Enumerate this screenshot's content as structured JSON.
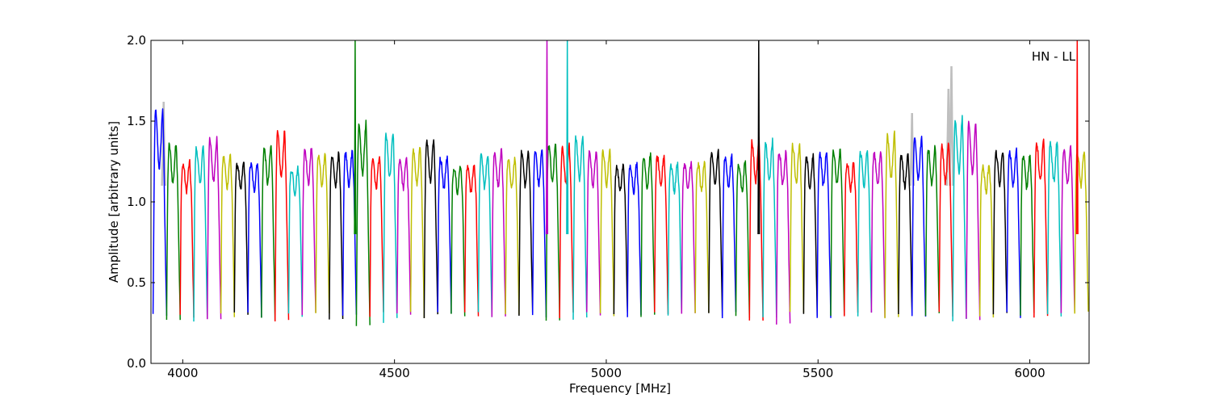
{
  "chart_data": {
    "type": "line",
    "title": "",
    "annotation": "HN - LL",
    "xlabel": "Frequency [MHz]",
    "ylabel": "Amplitude [arbitrary units]",
    "xlim": [
      3925,
      6140
    ],
    "ylim": [
      0.0,
      2.0
    ],
    "xticks": [
      4000,
      4500,
      5000,
      5500,
      6000
    ],
    "yticks": [
      0.0,
      0.5,
      1.0,
      1.5,
      2.0
    ],
    "xtick_labels": [
      "4000",
      "4500",
      "5000",
      "5500",
      "6000"
    ],
    "ytick_labels": [
      "0.0",
      "0.5",
      "1.0",
      "1.5",
      "2.0"
    ],
    "grid": false,
    "legend": "none",
    "band": {
      "start_mhz": 3930,
      "spacing_mhz": 32,
      "count": 69,
      "edge_level": 0.3,
      "color_cycle": [
        "#0000ff",
        "#008000",
        "#ff0000",
        "#00bfbf",
        "#bf00bf",
        "#bfbf00",
        "#000000"
      ],
      "background_color": "#bfbfbf"
    },
    "series": [
      {
        "values": [
          [
            3930,
            0.3,
            1.58
          ],
          [
            3962,
            0.27,
            1.35
          ],
          [
            3994,
            0.3,
            1.22
          ],
          [
            4026,
            0.27,
            1.33
          ],
          [
            4058,
            0.28,
            1.38
          ],
          [
            4090,
            0.29,
            1.27
          ],
          [
            4122,
            0.3,
            1.22
          ],
          [
            4154,
            0.3,
            1.22
          ],
          [
            4186,
            0.27,
            1.33
          ],
          [
            4218,
            0.28,
            1.43
          ],
          [
            4250,
            0.3,
            1.18
          ],
          [
            4282,
            0.3,
            1.33
          ],
          [
            4314,
            0.3,
            1.28
          ],
          [
            4346,
            0.28,
            1.28
          ],
          [
            4378,
            0.3,
            1.3
          ],
          [
            4410,
            0.25,
            1.48
          ],
          [
            4442,
            0.3,
            1.26
          ],
          [
            4474,
            0.27,
            1.42
          ],
          [
            4506,
            0.3,
            1.26
          ],
          [
            4538,
            0.3,
            1.32
          ],
          [
            4570,
            0.3,
            1.38
          ],
          [
            4602,
            0.3,
            1.26
          ],
          [
            4634,
            0.3,
            1.2
          ],
          [
            4666,
            0.3,
            1.2
          ],
          [
            4698,
            0.3,
            1.28
          ],
          [
            4730,
            0.3,
            1.3
          ],
          [
            4762,
            0.3,
            1.25
          ],
          [
            4794,
            0.3,
            1.3
          ],
          [
            4826,
            0.3,
            1.31
          ],
          [
            4858,
            0.27,
            1.35
          ],
          [
            4890,
            0.3,
            1.33
          ],
          [
            4922,
            0.27,
            1.4
          ],
          [
            4954,
            0.3,
            1.3
          ],
          [
            4986,
            0.3,
            1.31
          ],
          [
            5018,
            0.3,
            1.2
          ],
          [
            5050,
            0.3,
            1.21
          ],
          [
            5082,
            0.3,
            1.27
          ],
          [
            5114,
            0.3,
            1.27
          ],
          [
            5146,
            0.3,
            1.21
          ],
          [
            5178,
            0.3,
            1.22
          ],
          [
            5210,
            0.3,
            1.22
          ],
          [
            5242,
            0.3,
            1.3
          ],
          [
            5274,
            0.3,
            1.27
          ],
          [
            5306,
            0.3,
            1.22
          ],
          [
            5338,
            0.28,
            1.37
          ],
          [
            5370,
            0.3,
            1.36
          ],
          [
            5402,
            0.25,
            1.3
          ],
          [
            5434,
            0.3,
            1.35
          ],
          [
            5466,
            0.3,
            1.26
          ],
          [
            5498,
            0.3,
            1.3
          ],
          [
            5530,
            0.3,
            1.32
          ],
          [
            5562,
            0.3,
            1.22
          ],
          [
            5594,
            0.3,
            1.3
          ],
          [
            5626,
            0.3,
            1.3
          ],
          [
            5658,
            0.27,
            1.41
          ],
          [
            5690,
            0.3,
            1.28
          ],
          [
            5722,
            0.28,
            1.39
          ],
          [
            5754,
            0.3,
            1.33
          ],
          [
            5786,
            0.3,
            1.35
          ],
          [
            5818,
            0.27,
            1.52
          ],
          [
            5850,
            0.28,
            1.49
          ],
          [
            5882,
            0.3,
            1.2
          ],
          [
            5914,
            0.3,
            1.3
          ],
          [
            5946,
            0.3,
            1.3
          ],
          [
            5978,
            0.3,
            1.28
          ],
          [
            6010,
            0.3,
            1.37
          ],
          [
            6042,
            0.3,
            1.37
          ],
          [
            6074,
            0.3,
            1.32
          ],
          [
            6106,
            0.32,
            1.3
          ]
        ]
      }
    ],
    "spikes": [
      {
        "x": 4407,
        "y": 2.0,
        "color": "#008000"
      },
      {
        "x": 4860,
        "y": 2.0,
        "color": "#bf00bf"
      },
      {
        "x": 4908,
        "y": 2.0,
        "color": "#00bfbf"
      },
      {
        "x": 5360,
        "y": 2.0,
        "color": "#000000"
      },
      {
        "x": 6112,
        "y": 2.0,
        "color": "#ff0000"
      }
    ],
    "gray_peaks": [
      {
        "x": 3955,
        "y": 1.62
      },
      {
        "x": 5722,
        "y": 1.55
      },
      {
        "x": 5808,
        "y": 1.7
      },
      {
        "x": 5815,
        "y": 1.84
      }
    ]
  }
}
